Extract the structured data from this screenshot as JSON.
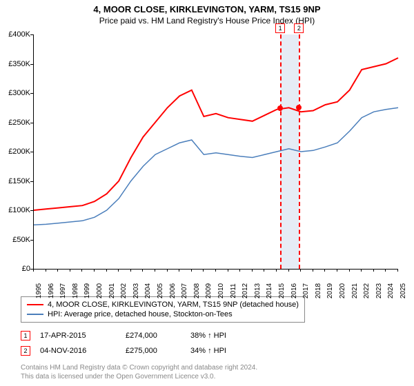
{
  "title": "4, MOOR CLOSE, KIRKLEVINGTON, YARM, TS15 9NP",
  "subtitle": "Price paid vs. HM Land Registry's House Price Index (HPI)",
  "chart": {
    "type": "line",
    "ylim": [
      0,
      400000
    ],
    "ytick_step": 50000,
    "ytick_labels": [
      "£0",
      "£50K",
      "£100K",
      "£150K",
      "£200K",
      "£250K",
      "£300K",
      "£350K",
      "£400K"
    ],
    "x_start_year": 1995,
    "x_end_year": 2025,
    "xtick_labels": [
      "1995",
      "1996",
      "1997",
      "1998",
      "1999",
      "2000",
      "2001",
      "2002",
      "2003",
      "2004",
      "2005",
      "2006",
      "2007",
      "2008",
      "2009",
      "2010",
      "2011",
      "2012",
      "2013",
      "2014",
      "2015",
      "2016",
      "2017",
      "2018",
      "2019",
      "2020",
      "2021",
      "2022",
      "2023",
      "2024",
      "2025"
    ],
    "series": [
      {
        "name": "4, MOOR CLOSE, KIRKLEVINGTON, YARM, TS15 9NP (detached house)",
        "color": "#ff0000",
        "width": 2,
        "values": [
          100,
          102,
          104,
          106,
          108,
          115,
          128,
          150,
          190,
          225,
          250,
          275,
          295,
          305,
          260,
          265,
          258,
          255,
          252,
          262,
          272,
          275,
          268,
          270,
          280,
          285,
          305,
          340,
          345,
          350,
          360
        ]
      },
      {
        "name": "HPI: Average price, detached house, Stockton-on-Tees",
        "color": "#4a7ebb",
        "width": 1.5,
        "values": [
          75,
          76,
          78,
          80,
          82,
          88,
          100,
          120,
          150,
          175,
          195,
          205,
          215,
          220,
          195,
          198,
          195,
          192,
          190,
          195,
          200,
          205,
          200,
          202,
          208,
          215,
          235,
          258,
          268,
          272,
          275
        ]
      }
    ],
    "markers": [
      {
        "label": "1",
        "year": 2015.29,
        "value": 274000
      },
      {
        "label": "2",
        "year": 2016.84,
        "value": 275000
      }
    ],
    "band_color": "#e6ecf5",
    "grid_color": "#cccccc",
    "marker_line_color": "#ff0000"
  },
  "legend": {
    "items": [
      {
        "color": "#ff0000",
        "label": "4, MOOR CLOSE, KIRKLEVINGTON, YARM, TS15 9NP (detached house)"
      },
      {
        "color": "#4a7ebb",
        "label": "HPI: Average price, detached house, Stockton-on-Tees"
      }
    ]
  },
  "sales": [
    {
      "marker": "1",
      "date": "17-APR-2015",
      "price": "£274,000",
      "diff": "38% ↑ HPI"
    },
    {
      "marker": "2",
      "date": "04-NOV-2016",
      "price": "£275,000",
      "diff": "34% ↑ HPI"
    }
  ],
  "footnote1": "Contains HM Land Registry data © Crown copyright and database right 2024.",
  "footnote2": "This data is licensed under the Open Government Licence v3.0."
}
